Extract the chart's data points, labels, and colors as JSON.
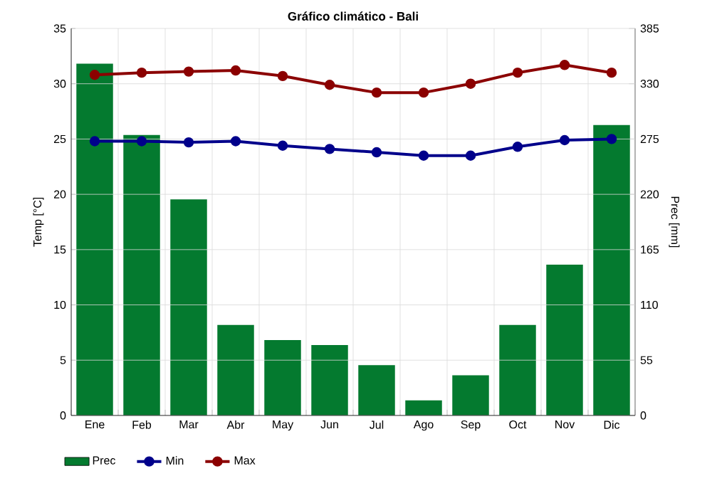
{
  "chart_data": {
    "type": "bar",
    "title": "Gráfico climático - Bali",
    "ylabel": "Temp [°C]",
    "y2label": "Prec [mm]",
    "categories": [
      "Ene",
      "Feb",
      "Mar",
      "Abr",
      "May",
      "Jun",
      "Jul",
      "Ago",
      "Sep",
      "Oct",
      "Nov",
      "Dic"
    ],
    "series": [
      {
        "name": "Prec",
        "axis": "y2",
        "color": "#047a2f",
        "values": [
          350,
          279,
          215,
          90,
          75,
          70,
          50,
          15,
          40,
          90,
          150,
          289
        ]
      },
      {
        "name": "Min",
        "type": "line",
        "color": "#00008b",
        "values": [
          24.8,
          24.8,
          24.7,
          24.8,
          24.4,
          24.1,
          23.8,
          23.5,
          23.5,
          24.3,
          24.9,
          25.0
        ]
      },
      {
        "name": "Max",
        "type": "line",
        "color": "#8b0000",
        "values": [
          30.8,
          31.0,
          31.1,
          31.2,
          30.7,
          29.9,
          29.2,
          29.2,
          30.0,
          31.0,
          31.7,
          31.0
        ]
      }
    ],
    "ylim": [
      0,
      35
    ],
    "yticks": [
      0,
      5,
      10,
      15,
      20,
      25,
      30,
      35
    ],
    "y2lim": [
      0,
      385
    ],
    "y2ticks": [
      0,
      55,
      110,
      165,
      220,
      275,
      330,
      385
    ],
    "grid": true,
    "legend": "bottom",
    "marker": "circle"
  }
}
